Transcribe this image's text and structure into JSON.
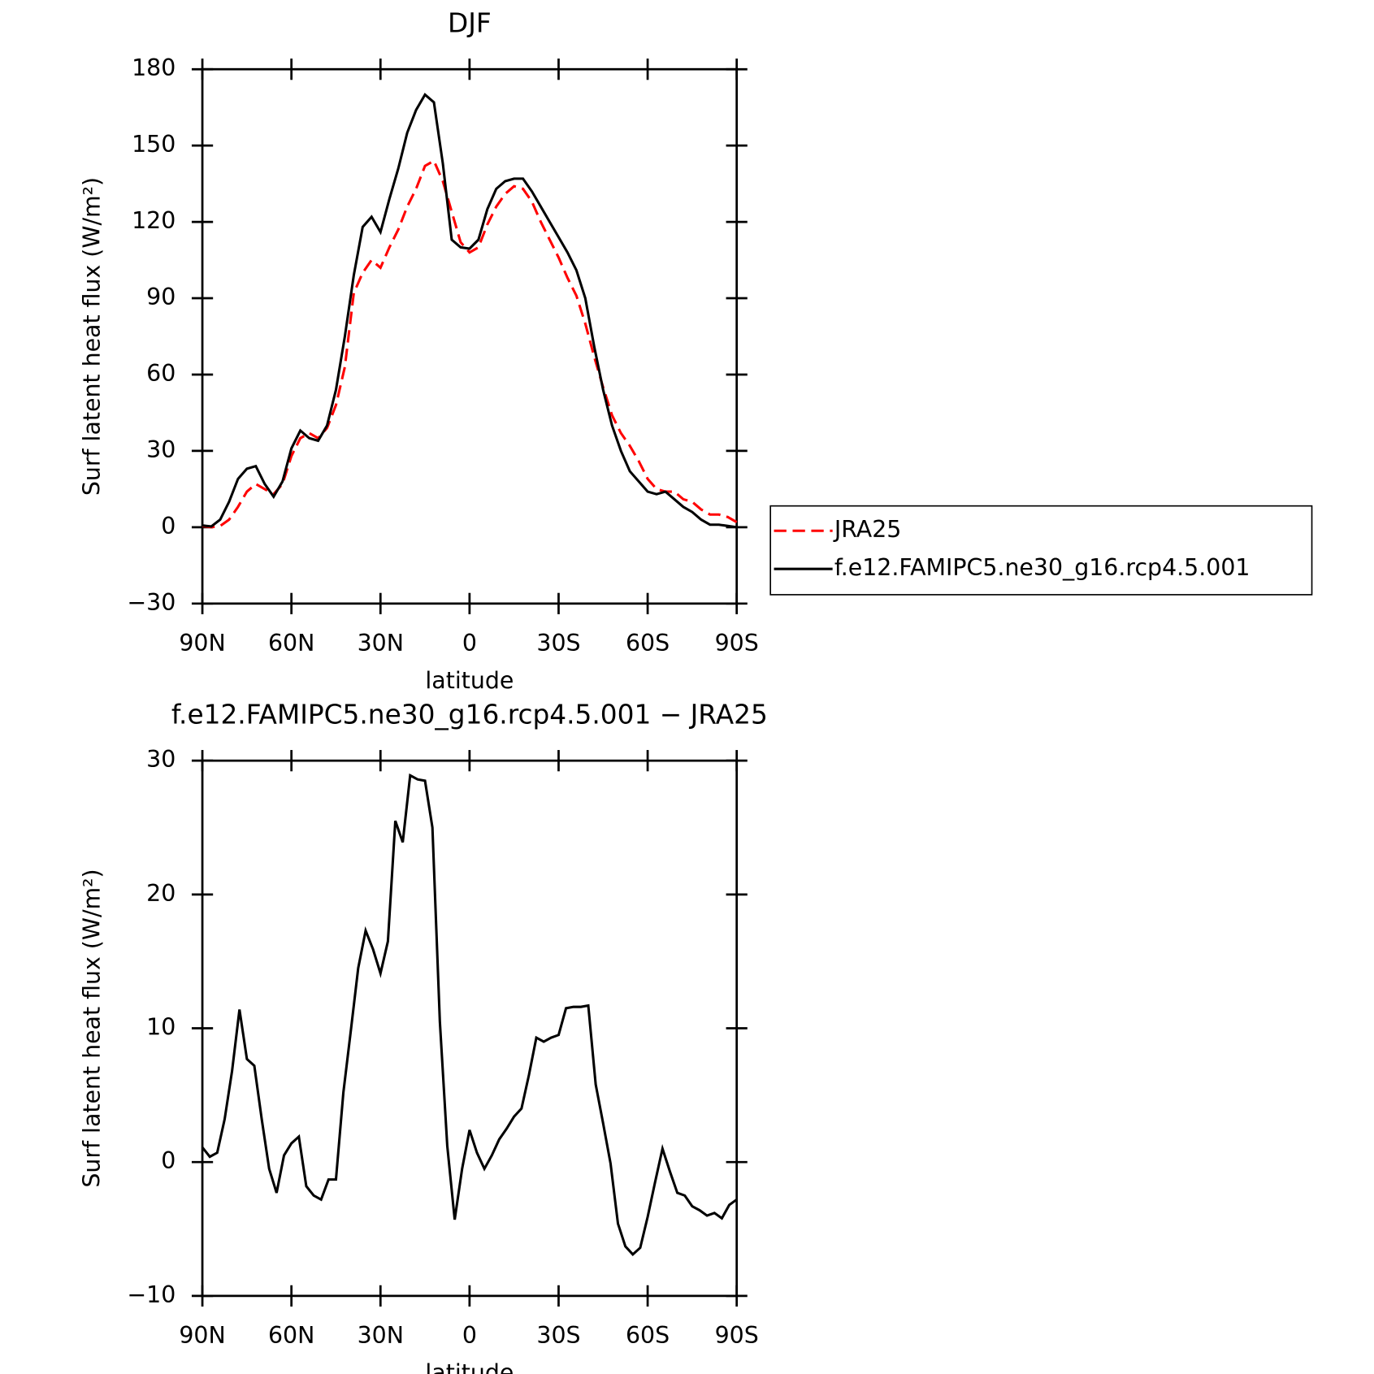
{
  "chart_data": [
    {
      "type": "line",
      "title": "DJF",
      "xlabel": "latitude",
      "ylabel": "Surf latent heat flux (W/m²)",
      "x": [
        90,
        87,
        84,
        81,
        78,
        75,
        72,
        69,
        66,
        63,
        60,
        57,
        54,
        51,
        48,
        45,
        42,
        39,
        36,
        33,
        30,
        27,
        24,
        21,
        18,
        15,
        12,
        9,
        6,
        3,
        0,
        -3,
        -6,
        -9,
        -12,
        -15,
        -18,
        -21,
        -24,
        -27,
        -30,
        -33,
        -36,
        -39,
        -42,
        -45,
        -48,
        -51,
        -54,
        -57,
        -60,
        -63,
        -66,
        -69,
        -72,
        -75,
        -78,
        -81,
        -84,
        -87,
        -90
      ],
      "series": [
        {
          "name": "JRA25",
          "color": "#ff0000",
          "line_style": "dashed",
          "values": [
            0.5,
            0,
            0.5,
            3,
            8,
            14,
            17,
            15,
            13,
            17,
            28,
            35,
            37,
            35,
            39,
            48,
            63,
            92,
            100,
            105,
            102,
            110,
            117,
            126,
            133,
            142,
            144,
            136,
            124,
            112,
            108,
            110,
            119,
            126,
            131,
            134,
            133,
            128,
            120,
            113,
            106,
            98,
            91,
            80,
            67,
            55,
            44,
            37,
            32,
            26,
            19,
            15,
            14,
            14,
            11,
            10,
            7,
            5,
            5,
            4,
            2
          ]
        },
        {
          "name": "f.e12.FAMIPC5.ne30_g16.rcp4.5.001",
          "color": "#000000",
          "line_style": "solid",
          "values": [
            0.7,
            0.3,
            3,
            10,
            19,
            23,
            24,
            17,
            12,
            18,
            31,
            38,
            35,
            34,
            40,
            54,
            75,
            99,
            118,
            122,
            116,
            129,
            141,
            155,
            164,
            170,
            167,
            143,
            113,
            110,
            109.5,
            113,
            125,
            133,
            136,
            137,
            137,
            132,
            126,
            120,
            114,
            108,
            101,
            90,
            71,
            54,
            40,
            30,
            22,
            18,
            14,
            13,
            14,
            11,
            8,
            6,
            3,
            1,
            1,
            0.5,
            0
          ]
        }
      ],
      "xlim": [
        90,
        -90
      ],
      "xticks": [
        {
          "value": 90,
          "label": "90N"
        },
        {
          "value": 60,
          "label": "60N"
        },
        {
          "value": 30,
          "label": "30N"
        },
        0,
        {
          "value": -30,
          "label": "30S"
        },
        {
          "value": -60,
          "label": "60S"
        },
        {
          "value": -90,
          "label": "90S"
        }
      ],
      "ylim": [
        -30,
        180
      ],
      "yticks": [
        {
          "value": -30,
          "label": "−30"
        },
        0,
        30,
        60,
        90,
        120,
        150,
        180
      ],
      "legend": "right"
    },
    {
      "type": "line",
      "title": "f.e12.FAMIPC5.ne30_g16.rcp4.5.001 − JRA25",
      "xlabel": "latitude",
      "ylabel": "Surf latent heat flux (W/m²)",
      "x": [
        90,
        87.5,
        85,
        82.5,
        80,
        77.5,
        75,
        72.5,
        70,
        67.5,
        65,
        62.5,
        60,
        57.5,
        55,
        52.5,
        50,
        47.5,
        45,
        42.5,
        40,
        37.5,
        35,
        32.5,
        30,
        27.5,
        25,
        22.5,
        20,
        17.5,
        15,
        12.5,
        10,
        7.5,
        5,
        2.5,
        0,
        -2.5,
        -5,
        -7.5,
        -10,
        -12.5,
        -15,
        -17.5,
        -20,
        -22.5,
        -25,
        -27.5,
        -30,
        -32.5,
        -35,
        -37.5,
        -40,
        -42.5,
        -45,
        -47.5,
        -50,
        -52.5,
        -55,
        -57.5,
        -60,
        -62.5,
        -65,
        -67.5,
        -70,
        -72.5,
        -75,
        -77.5,
        -80,
        -82.5,
        -85,
        -87.5,
        -90
      ],
      "series": [
        {
          "name": null,
          "color": "#000000",
          "line_style": "solid",
          "values": [
            1.1,
            0.4,
            0.7,
            3.2,
            6.8,
            11.4,
            7.7,
            7.2,
            3.2,
            -0.5,
            -2.3,
            0.5,
            1.4,
            1.9,
            -1.8,
            -2.5,
            -2.8,
            -1.3,
            -1.3,
            5.2,
            9.8,
            14.5,
            17.3,
            15.9,
            14.1,
            16.5,
            25.5,
            23.9,
            28.9,
            28.6,
            28.5,
            25,
            10.5,
            1.2,
            -4.3,
            -0.5,
            2.4,
            0.7,
            -0.5,
            0.5,
            1.7,
            2.5,
            3.4,
            4,
            6.5,
            9.3,
            9,
            9.3,
            9.5,
            11.5,
            11.6,
            11.6,
            11.7,
            5.8,
            2.9,
            -0.1,
            -4.6,
            -6.3,
            -6.9,
            -6.4,
            -4.1,
            -1.5,
            1,
            -0.7,
            -2.3,
            -2.5,
            -3.3,
            -3.6,
            -4,
            -3.8,
            -4.2,
            -3.2,
            -2.8
          ]
        }
      ],
      "xlim": [
        90,
        -90
      ],
      "xticks": [
        {
          "value": 90,
          "label": "90N"
        },
        {
          "value": 60,
          "label": "60N"
        },
        {
          "value": 30,
          "label": "30N"
        },
        0,
        {
          "value": -30,
          "label": "30S"
        },
        {
          "value": -60,
          "label": "60S"
        },
        {
          "value": -90,
          "label": "90S"
        }
      ],
      "ylim": [
        -10,
        30
      ],
      "yticks": [
        {
          "value": -10,
          "label": "−10"
        },
        0,
        10,
        20,
        30
      ]
    }
  ]
}
